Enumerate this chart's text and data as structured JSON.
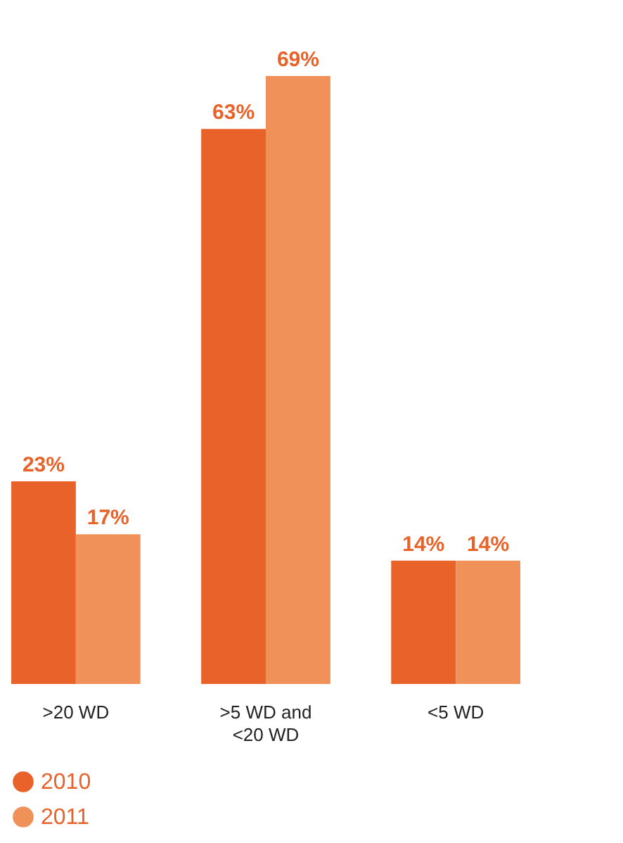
{
  "chart_data": {
    "type": "bar",
    "categories": [
      ">20 WD",
      ">5 WD and <20 WD",
      "<5 WD"
    ],
    "series": [
      {
        "name": "2010",
        "color": "#e8622a",
        "values": [
          23,
          63,
          14
        ],
        "value_labels": [
          "23%",
          "63%",
          "14%"
        ]
      },
      {
        "name": "2011",
        "color": "#f0915a",
        "values": [
          17,
          69,
          14
        ],
        "value_labels": [
          "17%",
          "69%",
          "14%"
        ]
      }
    ],
    "legend": "bottom"
  }
}
